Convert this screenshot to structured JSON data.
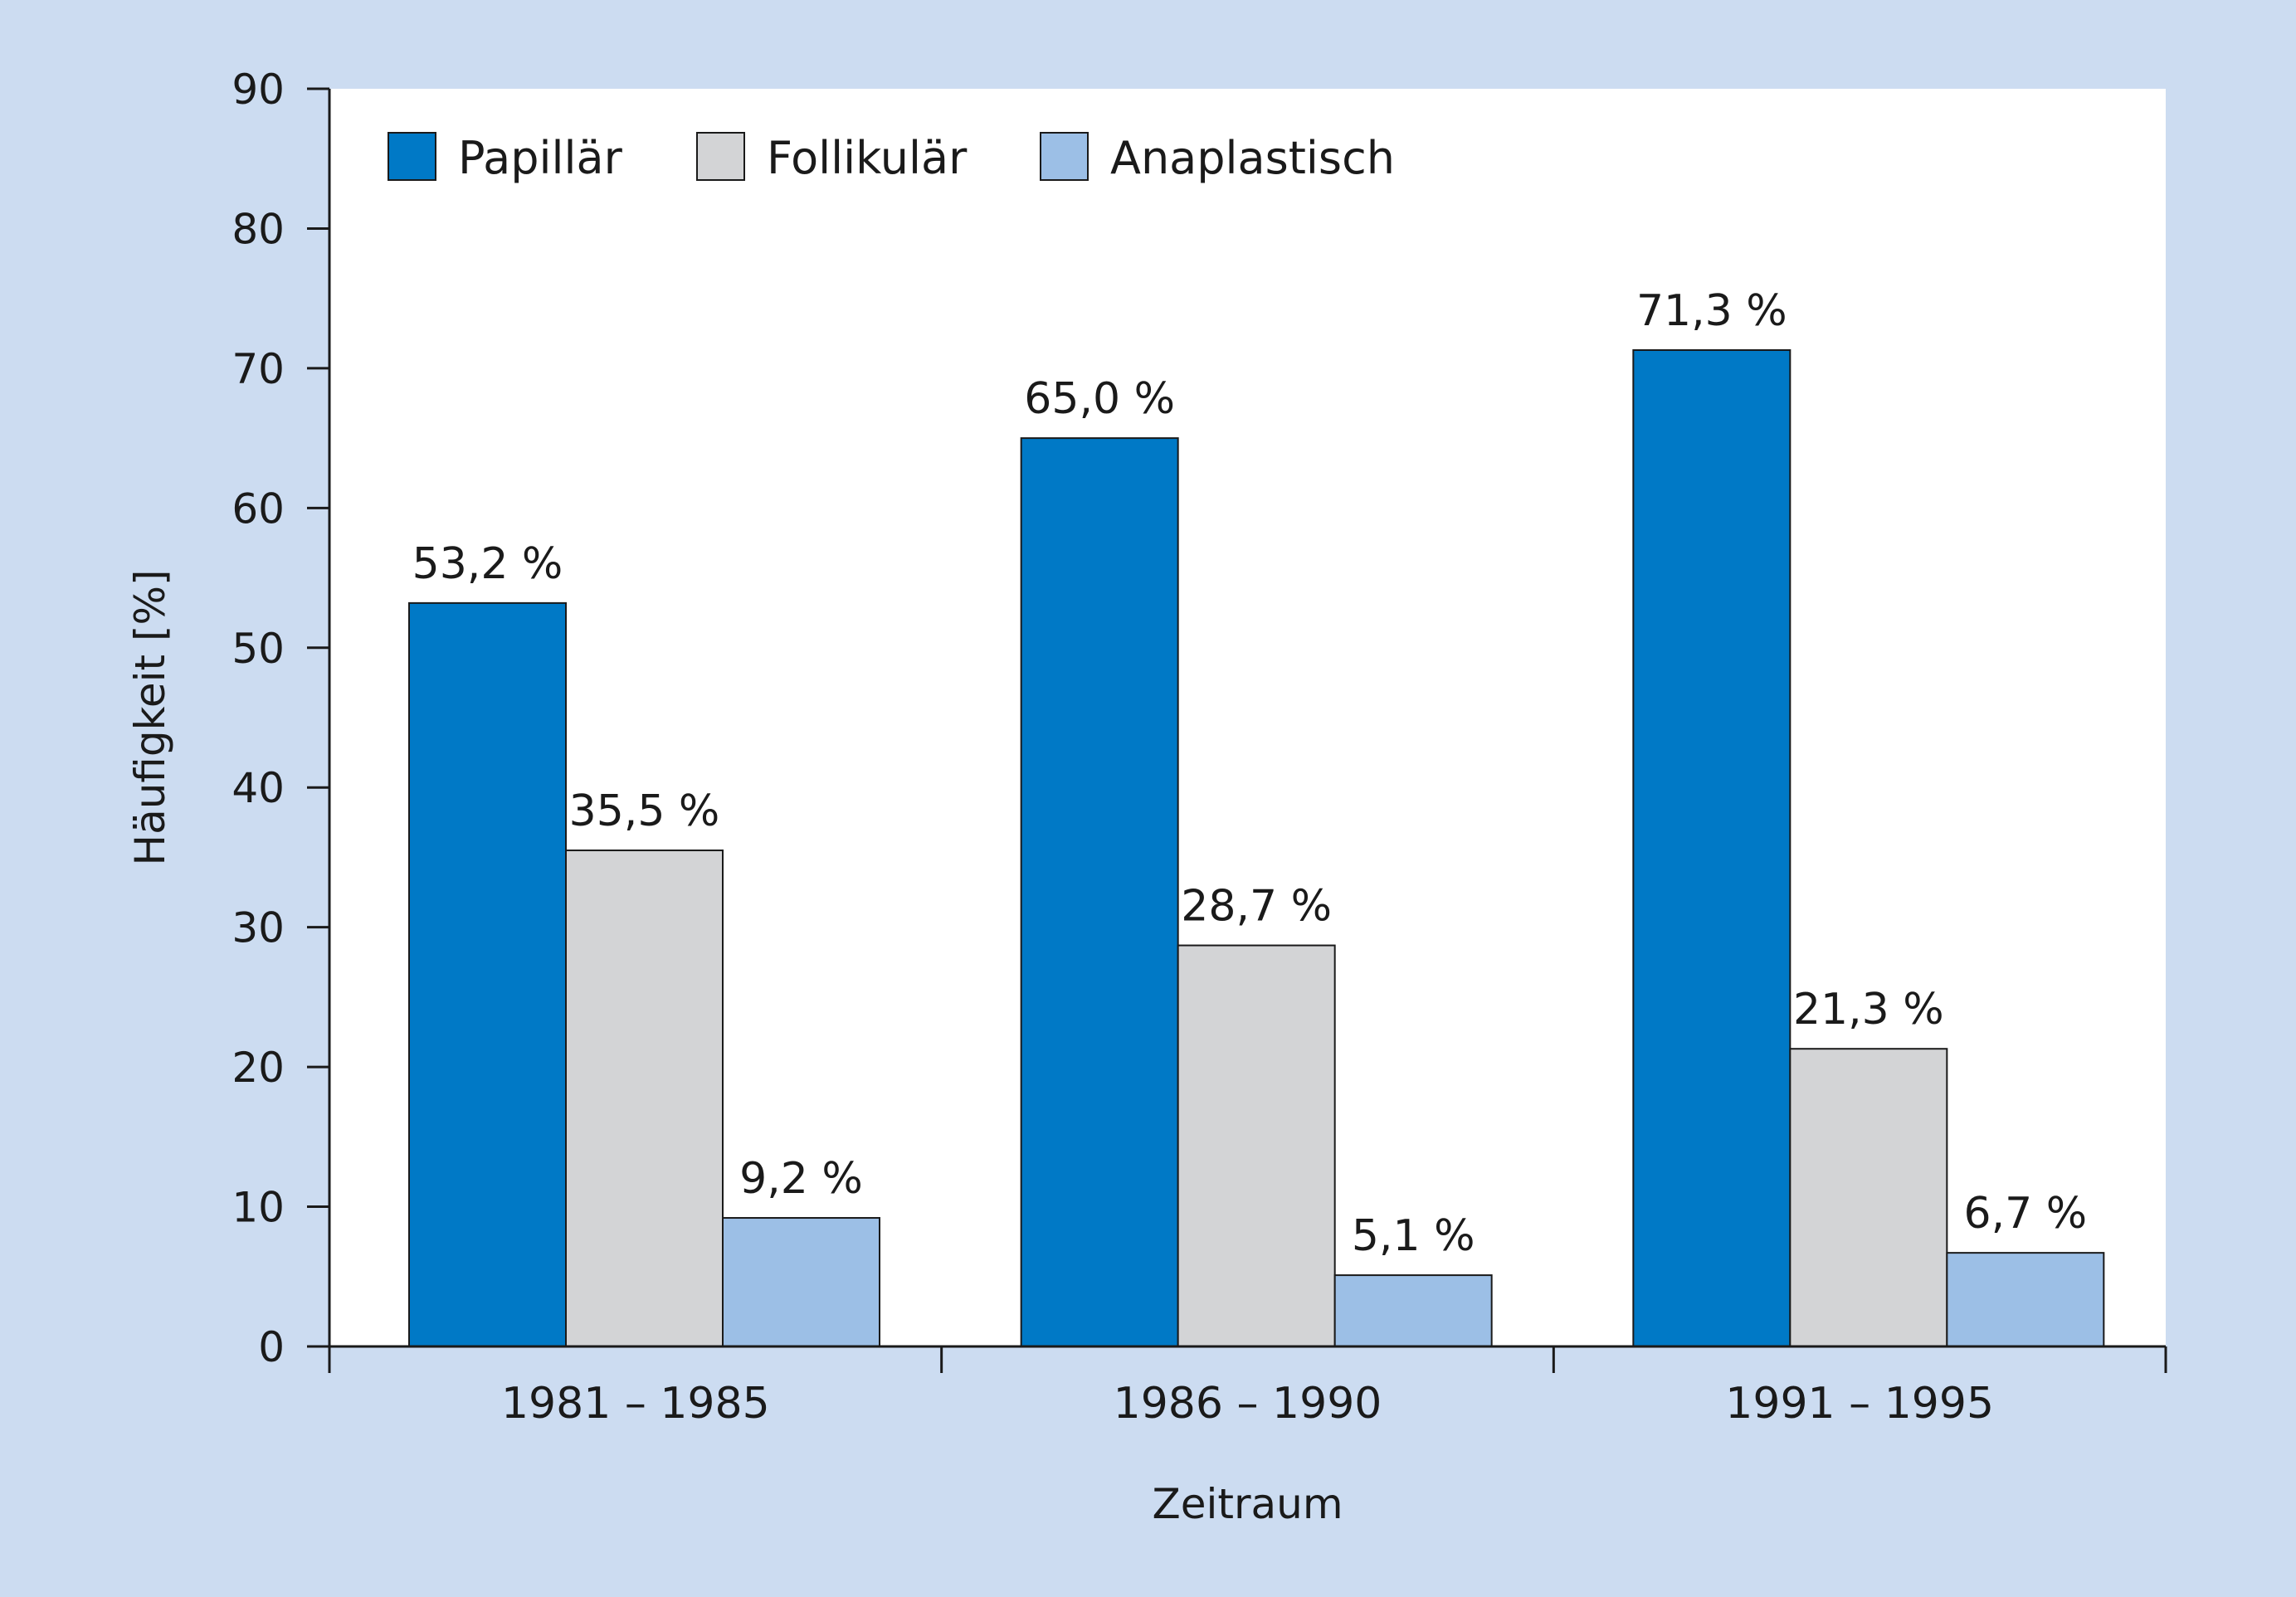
{
  "colors": {
    "background": "#ccdcf1",
    "plot_background": "#ffffff",
    "axis": "#1a1a1a"
  },
  "chart_data": {
    "type": "bar",
    "title": "",
    "xlabel": "Zeitraum",
    "ylabel": "Häufigkeit [%]",
    "ylim": [
      0,
      90
    ],
    "yticks": [
      0,
      10,
      20,
      30,
      40,
      50,
      60,
      70,
      80,
      90
    ],
    "grid": false,
    "legend_position": "top-left",
    "categories": [
      "1981 – 1985",
      "1986 – 1990",
      "1991 – 1995"
    ],
    "series": [
      {
        "name": "Papillär",
        "color": "#0079c6",
        "values": [
          53.2,
          65.0,
          71.3
        ],
        "labels": [
          "53,2 %",
          "65,0 %",
          "71,3 %"
        ]
      },
      {
        "name": "Follikulär",
        "color": "#d3d4d6",
        "values": [
          35.5,
          28.7,
          21.3
        ],
        "labels": [
          "35,5 %",
          "28,7 %",
          "21,3 %"
        ]
      },
      {
        "name": "Anaplastisch",
        "color": "#9cbfe6",
        "values": [
          9.2,
          5.1,
          6.7
        ],
        "labels": [
          "9,2 %",
          "5,1 %",
          "6,7 %"
        ]
      }
    ]
  }
}
